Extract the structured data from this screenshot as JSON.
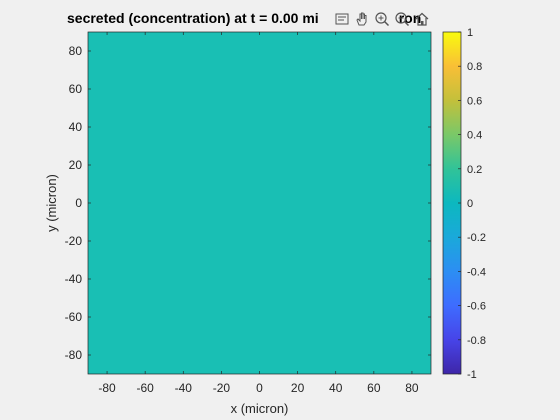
{
  "title": "secreted (concentration) at t = 0.00 mi",
  "title_tail": "ron",
  "toolbar": {
    "icons": [
      "data-tips-icon",
      "pan-hand-icon",
      "zoom-in-icon",
      "zoom-out-icon",
      "home-icon"
    ]
  },
  "colors": {
    "field": "#19bfb4",
    "background": "#f0f0f0",
    "axis": "#262626"
  },
  "chart_data": [
    {
      "type": "heatmap",
      "title": "secreted (concentration) at t = 0.00 mi…ron",
      "xlabel": "x (micron)",
      "ylabel": "y (micron)",
      "xlim": [
        -90,
        90
      ],
      "ylim": [
        -90,
        90
      ],
      "xticks": [
        "-80",
        "-60",
        "-40",
        "-20",
        "0",
        "20",
        "40",
        "60",
        "80"
      ],
      "xtick_values": [
        -80,
        -60,
        -40,
        -20,
        0,
        20,
        40,
        60,
        80
      ],
      "yticks": [
        "80",
        "60",
        "40",
        "20",
        "0",
        "-20",
        "-40",
        "-60",
        "-80"
      ],
      "ytick_values": [
        80,
        60,
        40,
        20,
        0,
        -20,
        -40,
        -60,
        -80
      ],
      "field_value": 0,
      "grid": false
    },
    {
      "type": "colorbar",
      "colormap": "parula",
      "clim": [
        -1,
        1
      ],
      "ticks": [
        "1",
        "0.8",
        "0.6",
        "0.4",
        "0.2",
        "0",
        "-0.2",
        "-0.4",
        "-0.6",
        "-0.8",
        "-1"
      ],
      "tick_values": [
        1,
        0.8,
        0.6,
        0.4,
        0.2,
        0,
        -0.2,
        -0.4,
        -0.6,
        -0.8,
        -1
      ]
    }
  ]
}
